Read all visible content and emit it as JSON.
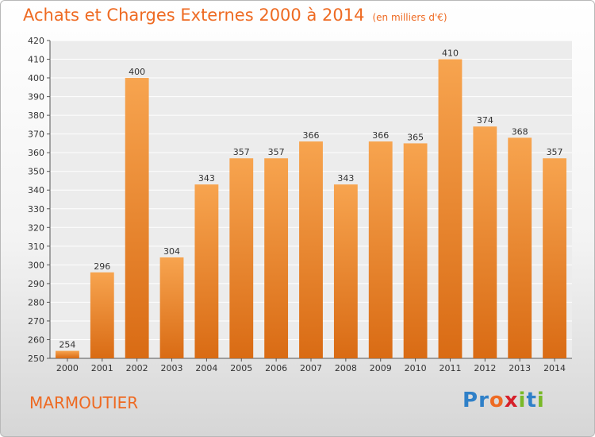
{
  "title": "Achats et Charges Externes 2000 à 2014",
  "subtitle": "(en milliers d'€)",
  "location": "MARMOUTIER",
  "logo": {
    "letters": [
      "P",
      "r",
      "o",
      "x",
      "i",
      "t",
      "i"
    ],
    "colors": [
      "#2f80c8",
      "#2f80c8",
      "#ee6a22",
      "#d6202a",
      "#79b928",
      "#2f80c8",
      "#79b928"
    ]
  },
  "colors": {
    "accent": "#ee6a22",
    "bar_top": "#f7a44f",
    "bar_bottom": "#d96b14"
  },
  "chart_data": {
    "type": "bar",
    "categories": [
      "2000",
      "2001",
      "2002",
      "2003",
      "2004",
      "2005",
      "2006",
      "2007",
      "2008",
      "2009",
      "2010",
      "2011",
      "2012",
      "2013",
      "2014"
    ],
    "values": [
      254,
      296,
      400,
      304,
      343,
      357,
      357,
      366,
      343,
      366,
      365,
      410,
      374,
      368,
      357
    ],
    "ylim": [
      250,
      420
    ],
    "ytick_step": 10,
    "grid": true,
    "title": "Achats et Charges Externes 2000 à 2014",
    "xlabel": "",
    "ylabel": ""
  }
}
